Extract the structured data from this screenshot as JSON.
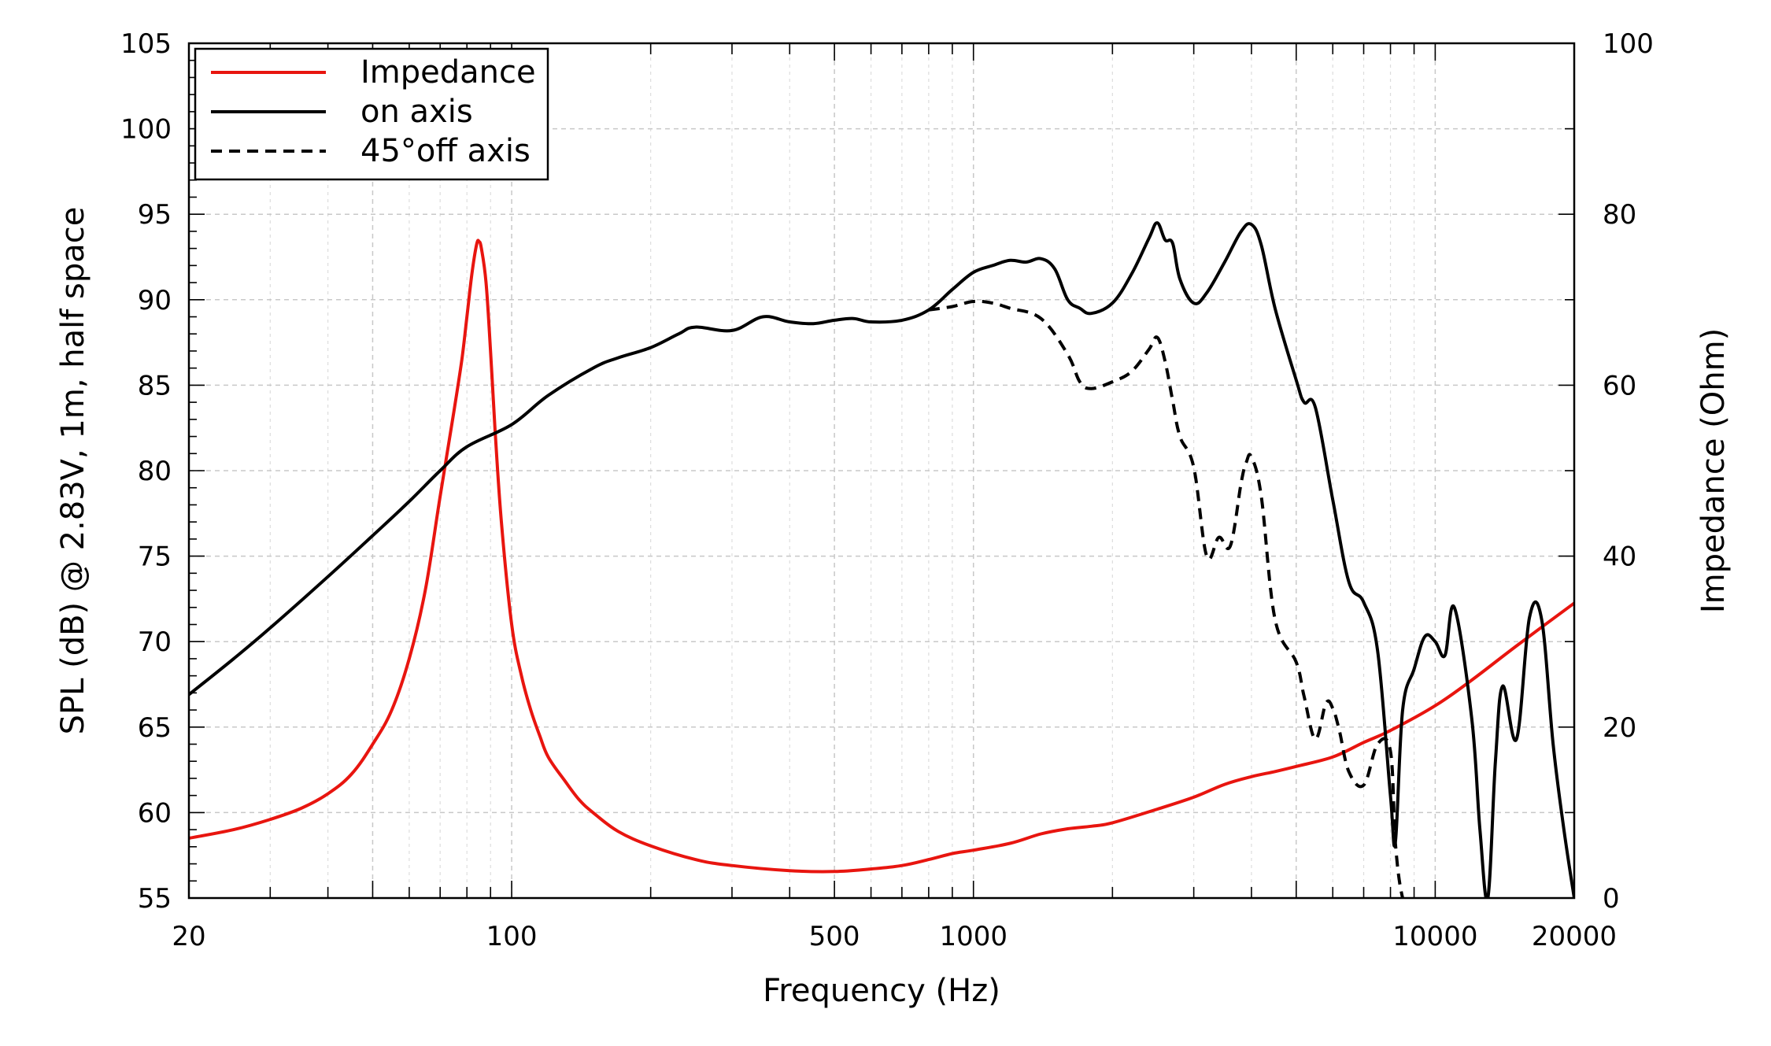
{
  "chart_data": {
    "type": "line",
    "xscale": "log",
    "xlim": [
      20,
      20000
    ],
    "ylim": [
      55,
      105
    ],
    "y2lim": [
      0,
      100
    ],
    "xlabel": "Frequency (Hz)",
    "ylabel": "SPL (dB) @ 2.83V, 1m, half space",
    "y2label": "Impedance (Ohm)",
    "xticks": [
      20,
      100,
      500,
      1000,
      10000,
      20000
    ],
    "yticks": [
      55,
      60,
      65,
      70,
      75,
      80,
      85,
      90,
      95,
      100,
      105
    ],
    "y2ticks": [
      0,
      20,
      40,
      60,
      80,
      100
    ],
    "grid": true,
    "legend": {
      "position": "top-left"
    },
    "colors": {
      "impedance": "#e8150f",
      "on_axis": "#000000",
      "off_axis": "#000000"
    },
    "series": [
      {
        "name": "Impedance",
        "axis": "right",
        "style": "solid",
        "color": "#e8150f",
        "x": [
          20,
          25,
          30,
          35,
          40,
          45,
          50,
          55,
          60,
          65,
          70,
          75,
          78,
          80,
          82,
          84,
          85,
          86,
          88,
          90,
          92,
          95,
          100,
          105,
          110,
          115,
          120,
          130,
          140,
          150,
          170,
          200,
          250,
          300,
          400,
          500,
          600,
          700,
          800,
          900,
          1000,
          1200,
          1400,
          1600,
          1800,
          2000,
          2500,
          3000,
          3500,
          4000,
          4500,
          5000,
          6000,
          7000,
          8000,
          10000,
          12000,
          15000,
          20000
        ],
        "y": [
          7,
          8,
          9.2,
          10.5,
          12.2,
          14.5,
          18,
          22,
          28,
          36,
          47,
          57,
          63,
          68,
          73,
          76.5,
          76.8,
          76,
          72,
          64,
          55,
          44,
          32,
          26,
          22,
          19,
          16.5,
          13.8,
          11.5,
          10,
          7.8,
          6.1,
          4.5,
          3.8,
          3.2,
          3.1,
          3.4,
          3.8,
          4.5,
          5.2,
          5.6,
          6.4,
          7.5,
          8.1,
          8.4,
          8.8,
          10.4,
          11.8,
          13.3,
          14.2,
          14.8,
          15.4,
          16.5,
          18.2,
          19.6,
          22.5,
          25.5,
          29.5,
          34.5
        ]
      },
      {
        "name": "on axis",
        "axis": "left",
        "style": "solid",
        "color": "#000000",
        "x": [
          20,
          25,
          30,
          40,
          50,
          60,
          70,
          80,
          100,
          120,
          150,
          170,
          200,
          230,
          250,
          300,
          350,
          400,
          450,
          500,
          550,
          600,
          700,
          800,
          900,
          1000,
          1100,
          1200,
          1300,
          1400,
          1500,
          1600,
          1700,
          1800,
          2000,
          2200,
          2400,
          2500,
          2600,
          2700,
          2800,
          3000,
          3200,
          3500,
          3800,
          4000,
          4200,
          4500,
          5000,
          5200,
          5500,
          6000,
          6500,
          7000,
          7500,
          8000,
          8200,
          8500,
          9000,
          9500,
          10000,
          10500,
          11000,
          12000,
          12500,
          13000,
          13500,
          14000,
          15000,
          16000,
          17000,
          18000,
          19000,
          20000
        ],
        "y": [
          66.9,
          69,
          70.8,
          73.8,
          76.2,
          78.2,
          80,
          81.4,
          82.7,
          84.4,
          86,
          86.6,
          87.2,
          88,
          88.4,
          88.2,
          89,
          88.7,
          88.6,
          88.8,
          88.9,
          88.7,
          88.8,
          89.4,
          90.6,
          91.6,
          92,
          92.3,
          92.2,
          92.4,
          91.8,
          90,
          89.5,
          89.2,
          89.8,
          91.5,
          93.6,
          94.5,
          93.5,
          93.3,
          91.2,
          89.8,
          90.4,
          92.2,
          94,
          94.4,
          93.2,
          89.5,
          85.3,
          84,
          83.7,
          78.3,
          73.5,
          72.3,
          69.5,
          61,
          58.3,
          66,
          68.4,
          70.3,
          70,
          69.2,
          72,
          65.5,
          59,
          55,
          63,
          67.4,
          64.3,
          71.4,
          71.3,
          64,
          59,
          55
        ]
      },
      {
        "name": "45°off axis",
        "axis": "left",
        "style": "dashed",
        "color": "#000000",
        "x": [
          800,
          900,
          1000,
          1100,
          1200,
          1400,
          1600,
          1700,
          1800,
          2000,
          2200,
          2400,
          2500,
          2600,
          2700,
          2800,
          3000,
          3200,
          3400,
          3600,
          3800,
          3900,
          4000,
          4200,
          4500,
          5000,
          5200,
          5500,
          5800,
          6000,
          6200,
          6500,
          7000,
          7500,
          8000,
          8200,
          8500,
          9000
        ],
        "y": [
          89.4,
          89.6,
          89.9,
          89.8,
          89.5,
          88.9,
          86.8,
          85.2,
          84.8,
          85.2,
          85.8,
          87.1,
          87.8,
          86.4,
          84.1,
          82,
          80.2,
          75,
          76.1,
          75.6,
          79.3,
          80.5,
          80.8,
          78.5,
          71.3,
          68.8,
          66.8,
          64.3,
          66.4,
          66.1,
          64.8,
          62.4,
          61.6,
          64,
          63.6,
          58.2,
          55,
          53.5
        ]
      }
    ]
  }
}
